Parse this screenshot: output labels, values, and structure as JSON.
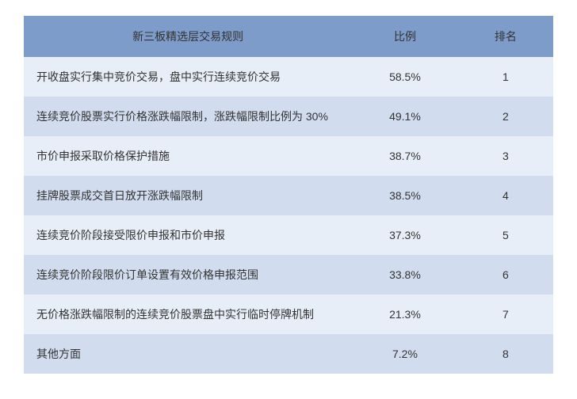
{
  "table": {
    "header": {
      "rule": "新三板精选层交易规则",
      "ratio": "比例",
      "rank": "排名"
    },
    "rows": [
      {
        "rule": "开收盘实行集中竞价交易，盘中实行连续竞价交易",
        "ratio": "58.5%",
        "rank": "1"
      },
      {
        "rule": "连续竞价股票实行价格涨跌幅限制，涨跌幅限制比例为 30%",
        "ratio": "49.1%",
        "rank": "2"
      },
      {
        "rule": "市价申报采取价格保护措施",
        "ratio": "38.7%",
        "rank": "3"
      },
      {
        "rule": "挂牌股票成交首日放开涨跌幅限制",
        "ratio": "38.5%",
        "rank": "4"
      },
      {
        "rule": "连续竞价阶段接受限价申报和市价申报",
        "ratio": "37.3%",
        "rank": "5"
      },
      {
        "rule": "连续竞价阶段限价订单设置有效价格申报范围",
        "ratio": "33.8%",
        "rank": "6"
      },
      {
        "rule": "无价格涨跌幅限制的连续竞价股票盘中实行临时停牌机制",
        "ratio": "21.3%",
        "rank": "7"
      },
      {
        "rule": "其他方面",
        "ratio": "7.2%",
        "rank": "8"
      }
    ],
    "styling": {
      "header_bg": "#7d9cc9",
      "row_even_bg": "#e8eef7",
      "row_odd_bg": "#d1ddee",
      "text_color": "#333333",
      "font_size": 14,
      "column_widths": [
        "62%",
        "20%",
        "18%"
      ],
      "column_align": [
        "left",
        "center",
        "center"
      ]
    }
  }
}
